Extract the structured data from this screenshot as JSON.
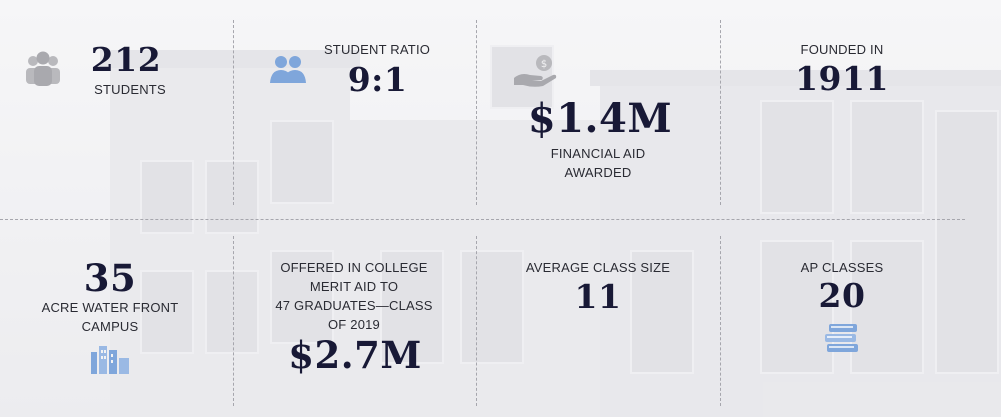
{
  "stats": {
    "students": {
      "value": "212",
      "label": "STUDENTS"
    },
    "ratio": {
      "label": "STUDENT RATIO",
      "value": "9:1"
    },
    "aid": {
      "value": "$1.4M",
      "label_line1": "FINANCIAL AID",
      "label_line2": "AWARDED"
    },
    "founded": {
      "label": "FOUNDED IN",
      "value": "1911"
    },
    "acre": {
      "value": "35",
      "label_line1": "ACRE WATER FRONT",
      "label_line2": "CAMPUS"
    },
    "merit": {
      "label_line1": "OFFERED IN COLLEGE",
      "label_line2": "MERIT AID TO",
      "label_line3": "47 GRADUATES—CLASS",
      "label_line4": "OF 2019",
      "value": "$2.7M"
    },
    "classsize": {
      "label": "AVERAGE CLASS SIZE",
      "value": "11"
    },
    "ap": {
      "label": "AP CLASSES",
      "value": "20"
    }
  },
  "icons": {
    "students": "people-group-icon",
    "ratio": "two-people-icon",
    "aid": "hand-money-icon",
    "acre": "buildings-icon",
    "ap": "books-icon"
  },
  "colors": {
    "accent": "#7fa6db",
    "gray_icon": "#b9b9bd",
    "heading": "#181936"
  }
}
